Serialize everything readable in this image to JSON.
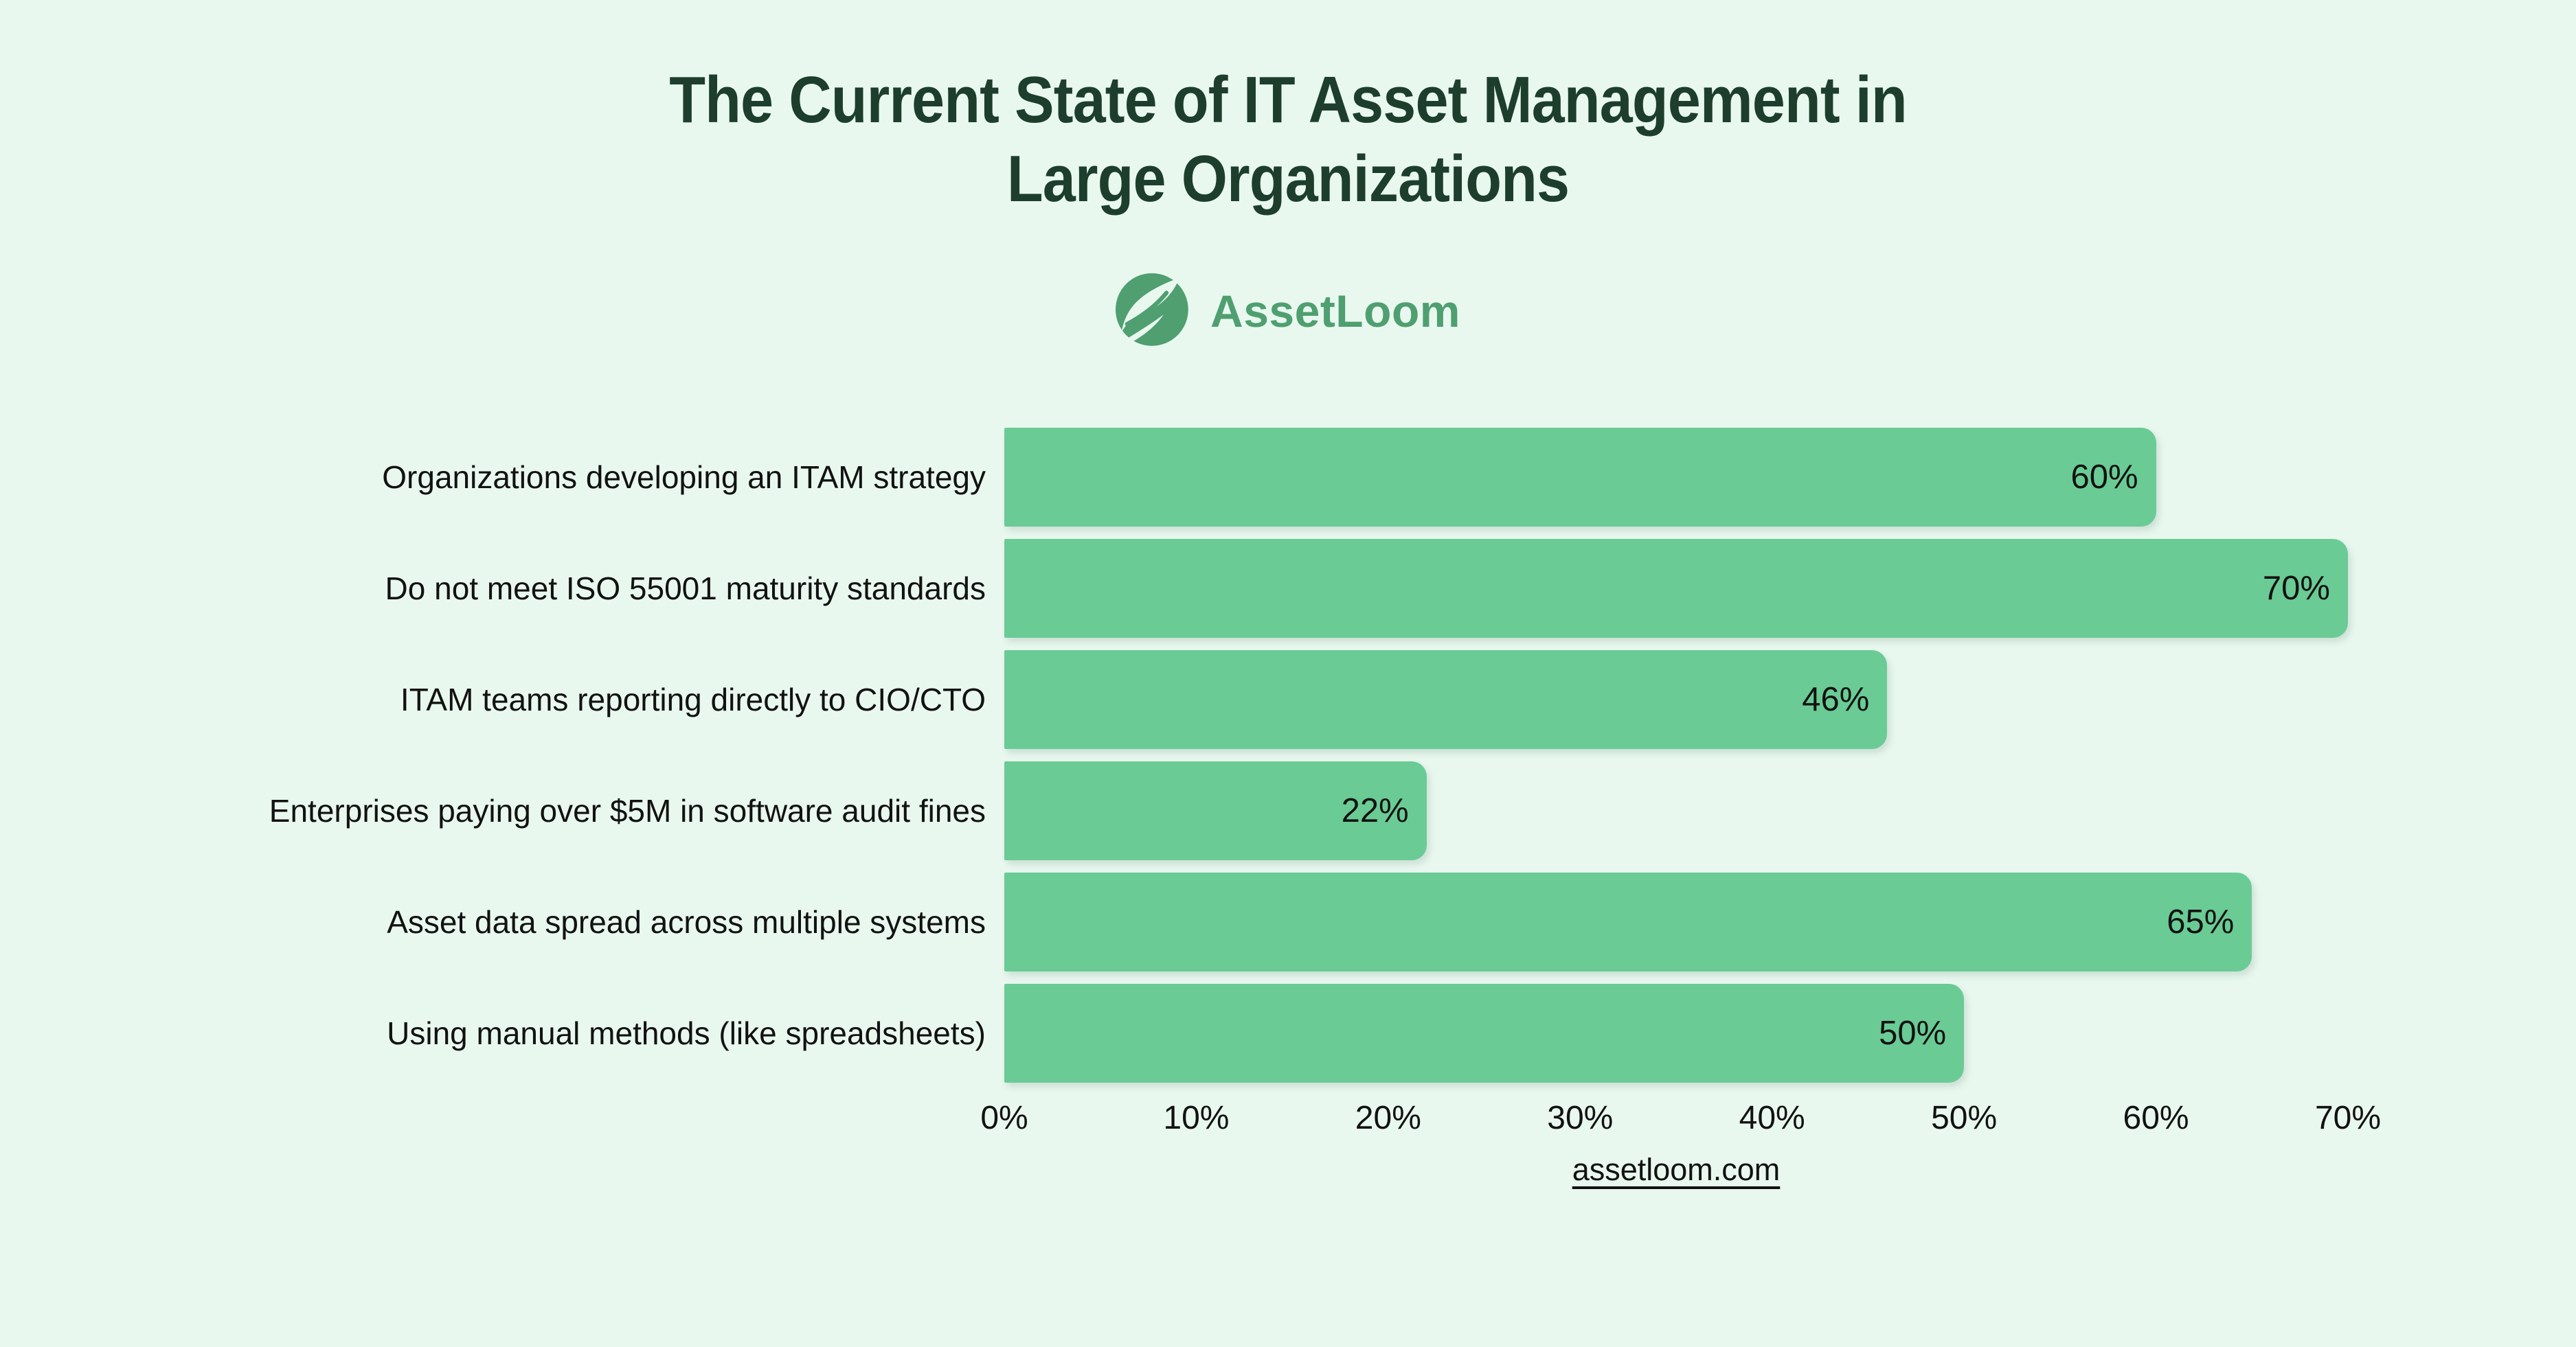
{
  "page": {
    "background": "#e9f8ef"
  },
  "header": {
    "title_line1": "The Current State of IT Asset Management in",
    "title_line2": "Large Organizations",
    "title_color": "#1d3e2d"
  },
  "logo": {
    "name": "AssetLoom",
    "color": "#4f9f70",
    "icon": "leaf-in-circle"
  },
  "chart_data": {
    "type": "bar",
    "orientation": "horizontal",
    "title": "The Current State of IT Asset Management in Large Organizations",
    "categories": [
      "Organizations developing an ITAM strategy",
      "Do not meet ISO 55001 maturity standards",
      "ITAM teams reporting directly to CIO/CTO",
      "Enterprises paying over $5M in software audit fines",
      "Asset data spread across multiple systems",
      "Using manual methods (like spreadsheets)"
    ],
    "values": [
      60,
      70,
      46,
      22,
      65,
      50
    ],
    "value_labels": [
      "60%",
      "70%",
      "46%",
      "22%",
      "65%",
      "50%"
    ],
    "x_ticks": [
      0,
      10,
      20,
      30,
      40,
      50,
      60,
      70
    ],
    "x_tick_labels": [
      "0%",
      "10%",
      "20%",
      "30%",
      "40%",
      "50%",
      "60%",
      "70%"
    ],
    "xlim": [
      0,
      70
    ],
    "xlabel": "",
    "ylabel": "",
    "bar_color": "#6acb95",
    "grid": false,
    "legend": false,
    "value_label_position": "inside-end"
  },
  "footer": {
    "link_text": "assetloom.com"
  }
}
